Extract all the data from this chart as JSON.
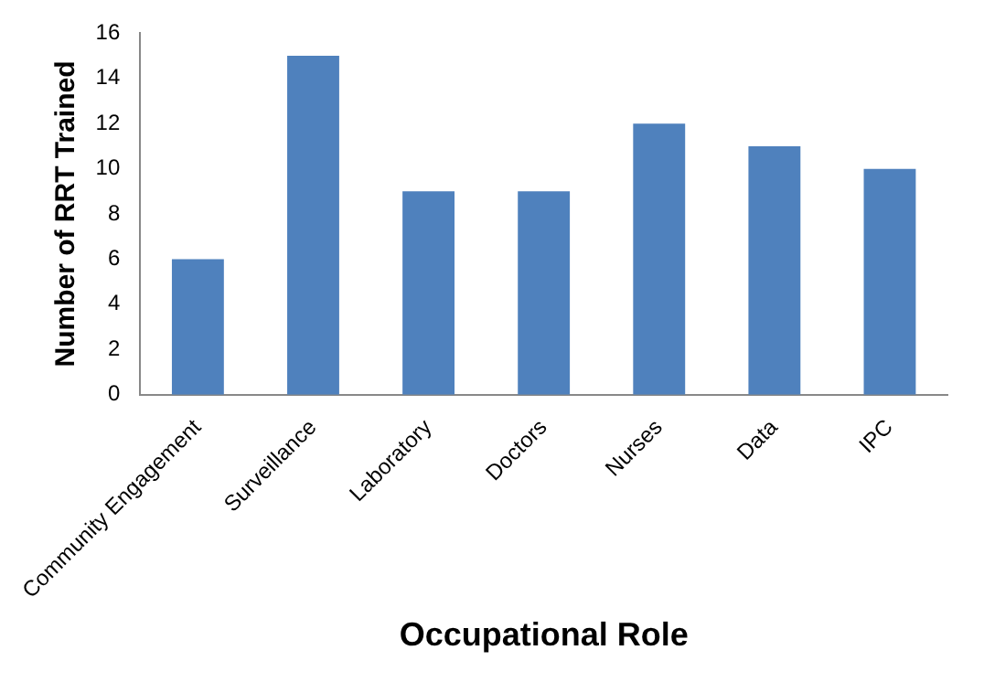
{
  "chart_data": {
    "type": "bar",
    "xlabel": "Occupational Role",
    "ylabel": "Number of RRT Trained",
    "categories": [
      "Community Engagement",
      "Surveillance",
      "Laboratory",
      "Doctors",
      "Nurses",
      "Data",
      "IPC"
    ],
    "values": [
      6,
      15,
      9,
      9,
      12,
      11,
      10
    ],
    "color": "#4f81bd",
    "ylim": [
      0,
      16
    ],
    "yticks": [
      0,
      2,
      4,
      6,
      8,
      10,
      12,
      14,
      16
    ],
    "grid": false,
    "legend": false
  }
}
